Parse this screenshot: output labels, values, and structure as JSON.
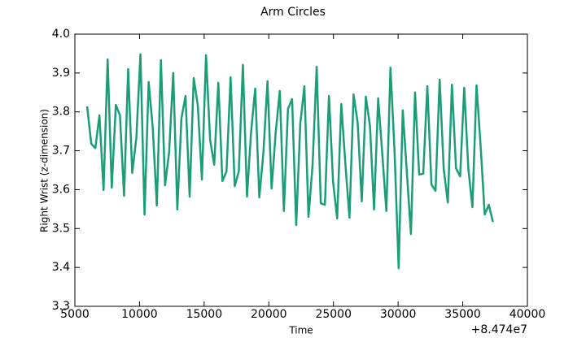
{
  "chart_data": {
    "type": "line",
    "title": "Arm Circles",
    "x_label": "Time",
    "y_label": "Right Wrist (z-dimension)",
    "x_offset_label": "+8.474e7",
    "x": [
      5950,
      6267,
      6584,
      6901,
      7218,
      7535,
      7852,
      8169,
      8486,
      8803,
      9120,
      9437,
      9754,
      10071,
      10388,
      10705,
      11022,
      11339,
      11656,
      11973,
      12290,
      12607,
      12924,
      13241,
      13558,
      13875,
      14192,
      14509,
      14826,
      15143,
      15460,
      15777,
      16094,
      16411,
      16728,
      17045,
      17362,
      17679,
      17996,
      18313,
      18630,
      18947,
      19264,
      19581,
      19898,
      20215,
      20532,
      20849,
      21166,
      21483,
      21800,
      22117,
      22434,
      22751,
      23068,
      23385,
      23702,
      24019,
      24336,
      24653,
      24970,
      25287,
      25604,
      25921,
      26238,
      26555,
      26872,
      27189,
      27506,
      27823,
      28140,
      28457,
      28774,
      29091,
      29408,
      29725,
      30042,
      30359,
      30676,
      30993,
      31310,
      31627,
      31944,
      32261,
      32578,
      32895,
      33212,
      33529,
      33846,
      34163,
      34480,
      34797,
      35114,
      35431,
      35748,
      36065,
      36382,
      36699,
      37016,
      37333
    ],
    "series": [
      {
        "name": "Right Wrist",
        "color": "#1b9e77",
        "values": [
          3.814,
          3.718,
          3.707,
          3.791,
          3.599,
          3.935,
          3.605,
          3.818,
          3.791,
          3.584,
          3.91,
          3.643,
          3.733,
          3.948,
          3.536,
          3.877,
          3.76,
          3.559,
          3.933,
          3.611,
          3.697,
          3.9,
          3.549,
          3.783,
          3.841,
          3.582,
          3.887,
          3.816,
          3.626,
          3.946,
          3.728,
          3.664,
          3.875,
          3.622,
          3.647,
          3.889,
          3.609,
          3.647,
          3.921,
          3.582,
          3.749,
          3.86,
          3.58,
          3.695,
          3.879,
          3.603,
          3.747,
          3.854,
          3.545,
          3.808,
          3.833,
          3.509,
          3.77,
          3.866,
          3.53,
          3.664,
          3.916,
          3.565,
          3.561,
          3.841,
          3.62,
          3.526,
          3.82,
          3.666,
          3.528,
          3.845,
          3.772,
          3.57,
          3.839,
          3.764,
          3.549,
          3.835,
          3.693,
          3.545,
          3.914,
          3.699,
          3.398,
          3.804,
          3.645,
          3.486,
          3.85,
          3.639,
          3.641,
          3.866,
          3.613,
          3.597,
          3.883,
          3.653,
          3.567,
          3.87,
          3.655,
          3.634,
          3.862,
          3.655,
          3.555,
          3.868,
          3.712,
          3.536,
          3.561,
          3.517
        ]
      }
    ],
    "xlim": [
      5000,
      40000
    ],
    "xticks": [
      5000,
      10000,
      15000,
      20000,
      25000,
      30000,
      35000,
      40000
    ],
    "ylim": [
      3.3,
      4.0
    ],
    "yticks": [
      3.3,
      3.4,
      3.5,
      3.6,
      3.7,
      3.8,
      3.9,
      {
        "value": 4,
        "label": "4.0"
      }
    ]
  }
}
